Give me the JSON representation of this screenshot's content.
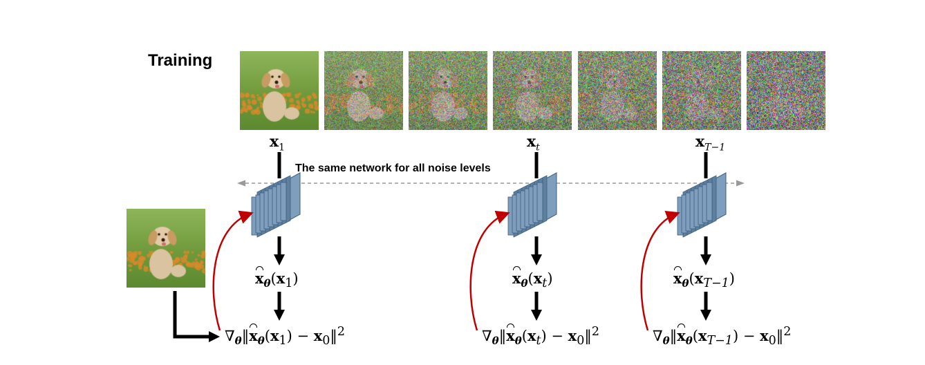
{
  "title": "Training",
  "network_caption": "The same network for all noise levels",
  "noisy_images": [
    {
      "noise_level": 0.0
    },
    {
      "noise_level": 0.45
    },
    {
      "noise_level": 0.55
    },
    {
      "noise_level": 0.62
    },
    {
      "noise_level": 0.7
    },
    {
      "noise_level": 0.78
    },
    {
      "noise_level": 0.88
    }
  ],
  "input_labels": [
    {
      "base": "x",
      "sub": "1"
    },
    {
      "base": "x",
      "sub": "t"
    },
    {
      "base": "x",
      "sub": "T−1"
    }
  ],
  "estimates": [
    {
      "arg_base": "x",
      "arg_sub": "1"
    },
    {
      "arg_base": "x",
      "arg_sub": "t"
    },
    {
      "arg_base": "x",
      "arg_sub": "T−1"
    }
  ],
  "loss": {
    "nabla": "∇",
    "target_base": "x",
    "target_sub": "0",
    "power": "2"
  },
  "colors": {
    "network_face": "#7f9dbd",
    "network_edge": "#3f5f7f",
    "gradient_arrow": "#c00000",
    "dashed_arrow": "#999999"
  }
}
